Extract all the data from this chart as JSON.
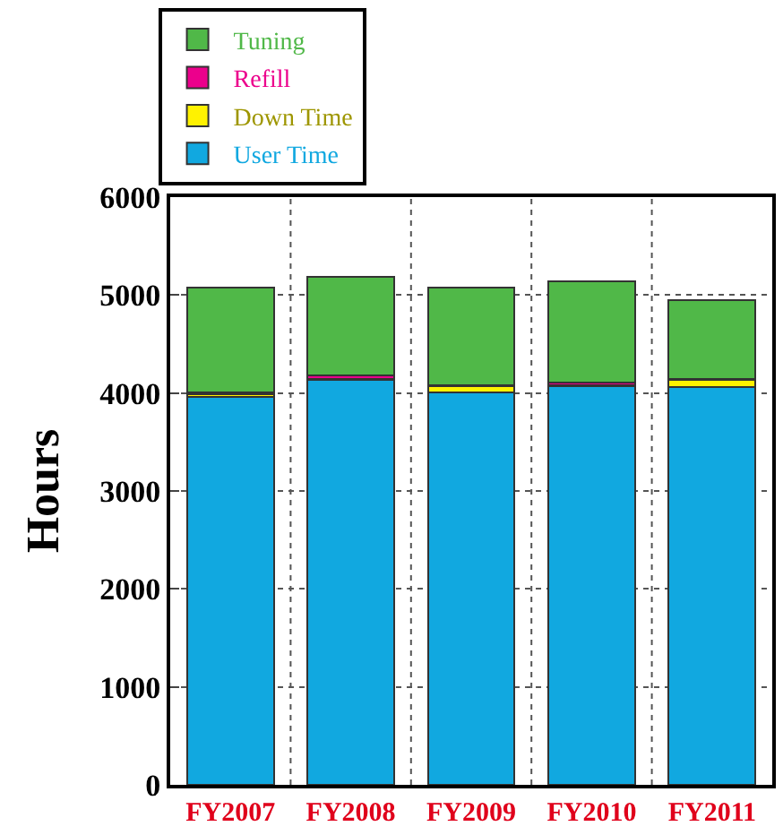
{
  "chart_data": {
    "type": "bar",
    "stacked": true,
    "ylabel": "Hours",
    "categories": [
      "FY2007",
      "FY2008",
      "FY2009",
      "FY2010",
      "FY2011"
    ],
    "series": [
      {
        "name": "User Time",
        "color": "#11a8e0",
        "values": [
          3960,
          4130,
          4010,
          4070,
          4060
        ]
      },
      {
        "name": "Down Time",
        "color": "#fff200",
        "values": [
          30,
          10,
          60,
          10,
          70
        ]
      },
      {
        "name": "Refill",
        "color": "#ec008c",
        "values": [
          20,
          40,
          10,
          30,
          10
        ]
      },
      {
        "name": "Tuning",
        "color": "#50b848",
        "values": [
          1070,
          1010,
          1000,
          1030,
          810
        ]
      }
    ],
    "ylim": [
      0,
      6000
    ],
    "yticks": [
      0,
      1000,
      2000,
      3000,
      4000,
      5000,
      6000
    ],
    "grid": true,
    "legend": "top left"
  }
}
